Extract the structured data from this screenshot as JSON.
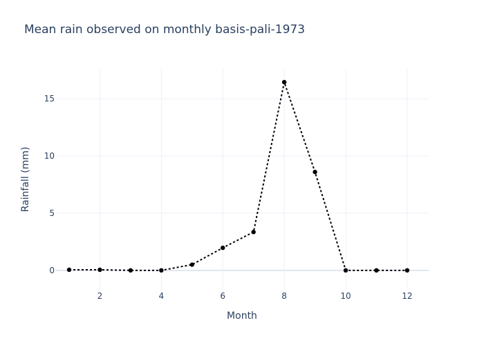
{
  "chart_data": {
    "type": "line",
    "title": "Mean rain observed on monthly basis-pali-1973",
    "xlabel": "Month",
    "ylabel": "Rainfall (mm)",
    "x": [
      1,
      2,
      3,
      4,
      5,
      6,
      7,
      8,
      9,
      10,
      11,
      12
    ],
    "series": [
      {
        "values": [
          0.05,
          0.05,
          0.0,
          0.0,
          0.5,
          1.97,
          3.35,
          16.45,
          8.6,
          0.0,
          0.0,
          0.0
        ]
      }
    ],
    "xlim": [
      0.55,
      12.7
    ],
    "ylim": [
      -1.7,
      17.6
    ],
    "xticks": [
      2,
      4,
      6,
      8,
      10,
      12
    ],
    "yticks": [
      0,
      5,
      10,
      15
    ],
    "grid": true,
    "legend": "none",
    "line_style": "dotted",
    "line_color": "#000000",
    "grid_color": "#ebf0f8"
  }
}
